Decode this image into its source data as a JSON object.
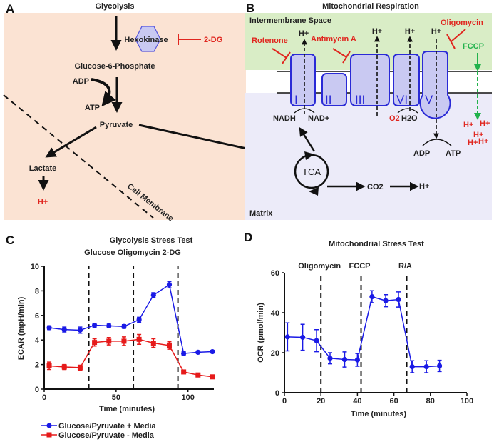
{
  "panelA": {
    "letter": "A",
    "title": "Glycolysis",
    "enzyme": "Hexokinase",
    "inhibitor": "2-DG",
    "g6p": "Glucose-6-Phosphate",
    "adp": "ADP",
    "atp": "ATP",
    "pyruvate": "Pyruvate",
    "lactate": "Lactate",
    "proton": "H+",
    "membrane": "Cell Membrane",
    "colors": {
      "background": "#fbe3d3",
      "inhibitor": "#e0261f",
      "enzyme": "#c9c9f2"
    }
  },
  "panelB": {
    "letter": "B",
    "title": "Mitochondrial Respiration",
    "ims": "Intermembrane Space",
    "matrix": "Matrix",
    "complexes": [
      "I",
      "II",
      "III",
      "VI",
      "V"
    ],
    "rotenone": "Rotenone",
    "antimycin": "Antimycin A",
    "oligomycin": "Oligomycin",
    "fccp": "FCCP",
    "proton": "H+",
    "nadh": "NADH",
    "nad": "NAD+",
    "o2": "O2",
    "h2o": "H2O",
    "adp": "ADP",
    "atp": "ATP",
    "tca": "TCA",
    "co2": "CO2",
    "colors": {
      "ims": "#d9edc6",
      "matrix": "#ecebf9",
      "inhibitor": "#e0261f",
      "fccp": "#22b24c",
      "complex": "#c9c9f2"
    }
  },
  "chart_data": [
    {
      "panel": "C",
      "type": "line",
      "title": "Glycolysis Stress Test",
      "injections": [
        {
          "label": "Glucose",
          "x": 31
        },
        {
          "label": "Oligomycin",
          "x": 62
        },
        {
          "label": "2-DG",
          "x": 93
        }
      ],
      "injection_label_line": "Glucose Oligomycin  2-DG",
      "xlabel": "Time (minutes)",
      "ylabel": "ECAR (mpH/min)",
      "xlim": [
        0,
        118
      ],
      "ylim": [
        0,
        10
      ],
      "xticks": [
        0,
        50,
        100
      ],
      "yticks": [
        0,
        2,
        4,
        6,
        8,
        10
      ],
      "x": [
        3.5,
        14,
        25,
        35,
        45,
        55.5,
        66,
        76,
        87,
        97,
        107,
        117
      ],
      "series": [
        {
          "name": "Glucose/Pyruvate + Media",
          "color": "#1a1ae6",
          "marker": "circle",
          "values": [
            5.0,
            4.85,
            4.8,
            5.2,
            5.15,
            5.1,
            5.65,
            7.65,
            8.5,
            2.9,
            3.0,
            3.05
          ],
          "errors": [
            0.15,
            0.2,
            0.25,
            0.15,
            0.15,
            0.15,
            0.2,
            0.2,
            0.25,
            0.15,
            0.1,
            0.1
          ]
        },
        {
          "name": "Glucose/Pyruvate - Media",
          "color": "#e61a1a",
          "marker": "square",
          "values": [
            1.9,
            1.8,
            1.75,
            3.8,
            3.9,
            3.9,
            4.05,
            3.75,
            3.55,
            1.4,
            1.15,
            1.0
          ],
          "errors": [
            0.3,
            0.2,
            0.2,
            0.3,
            0.3,
            0.35,
            0.4,
            0.35,
            0.3,
            0.15,
            0.15,
            0.1
          ]
        }
      ],
      "legend": "bottom"
    },
    {
      "panel": "D",
      "type": "line",
      "title": "Mitochondrial Stress Test",
      "injections": [
        {
          "label": "Oligomycin",
          "x": 20
        },
        {
          "label": "FCCP",
          "x": 42
        },
        {
          "label": "R/A",
          "x": 67
        }
      ],
      "xlabel": "Time (minutes)",
      "ylabel": "OCR (pmol/min)",
      "xlim": [
        0,
        100
      ],
      "ylim": [
        0,
        60
      ],
      "xticks": [
        0,
        20,
        40,
        60,
        80,
        100
      ],
      "yticks": [
        0,
        20,
        40,
        60
      ],
      "x": [
        1.7,
        10,
        17.6,
        25,
        33,
        40,
        48,
        55.5,
        62.5,
        70,
        77.8,
        85
      ],
      "series": [
        {
          "name": "OCR",
          "color": "#1a1ae6",
          "marker": "circle",
          "values": [
            27.9,
            27.7,
            26.0,
            17.2,
            16.6,
            16.4,
            48.0,
            46.0,
            46.6,
            13.0,
            13.0,
            13.4
          ],
          "errors": [
            7,
            6.5,
            5.5,
            2.8,
            3.8,
            3.2,
            3,
            3,
            3.8,
            3,
            3,
            2.8
          ]
        }
      ]
    }
  ]
}
